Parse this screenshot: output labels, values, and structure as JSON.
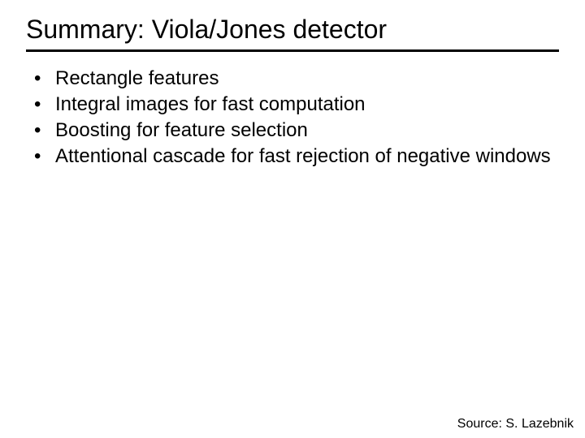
{
  "slide": {
    "title": "Summary: Viola/Jones detector",
    "title_fontsize": 32,
    "title_color": "#000000",
    "divider_color": "#000000",
    "divider_thickness": 3,
    "bullets": [
      {
        "marker": "•",
        "text": "Rectangle features"
      },
      {
        "marker": "•",
        "text": "Integral images for fast computation"
      },
      {
        "marker": "•",
        "text": "Boosting for feature selection"
      },
      {
        "marker": "•",
        "text": "Attentional cascade for fast rejection of negative windows"
      }
    ],
    "bullet_fontsize": 24,
    "bullet_color": "#000000",
    "attribution": "Source: S. Lazebnik",
    "attribution_fontsize": 16,
    "background_color": "#ffffff"
  }
}
